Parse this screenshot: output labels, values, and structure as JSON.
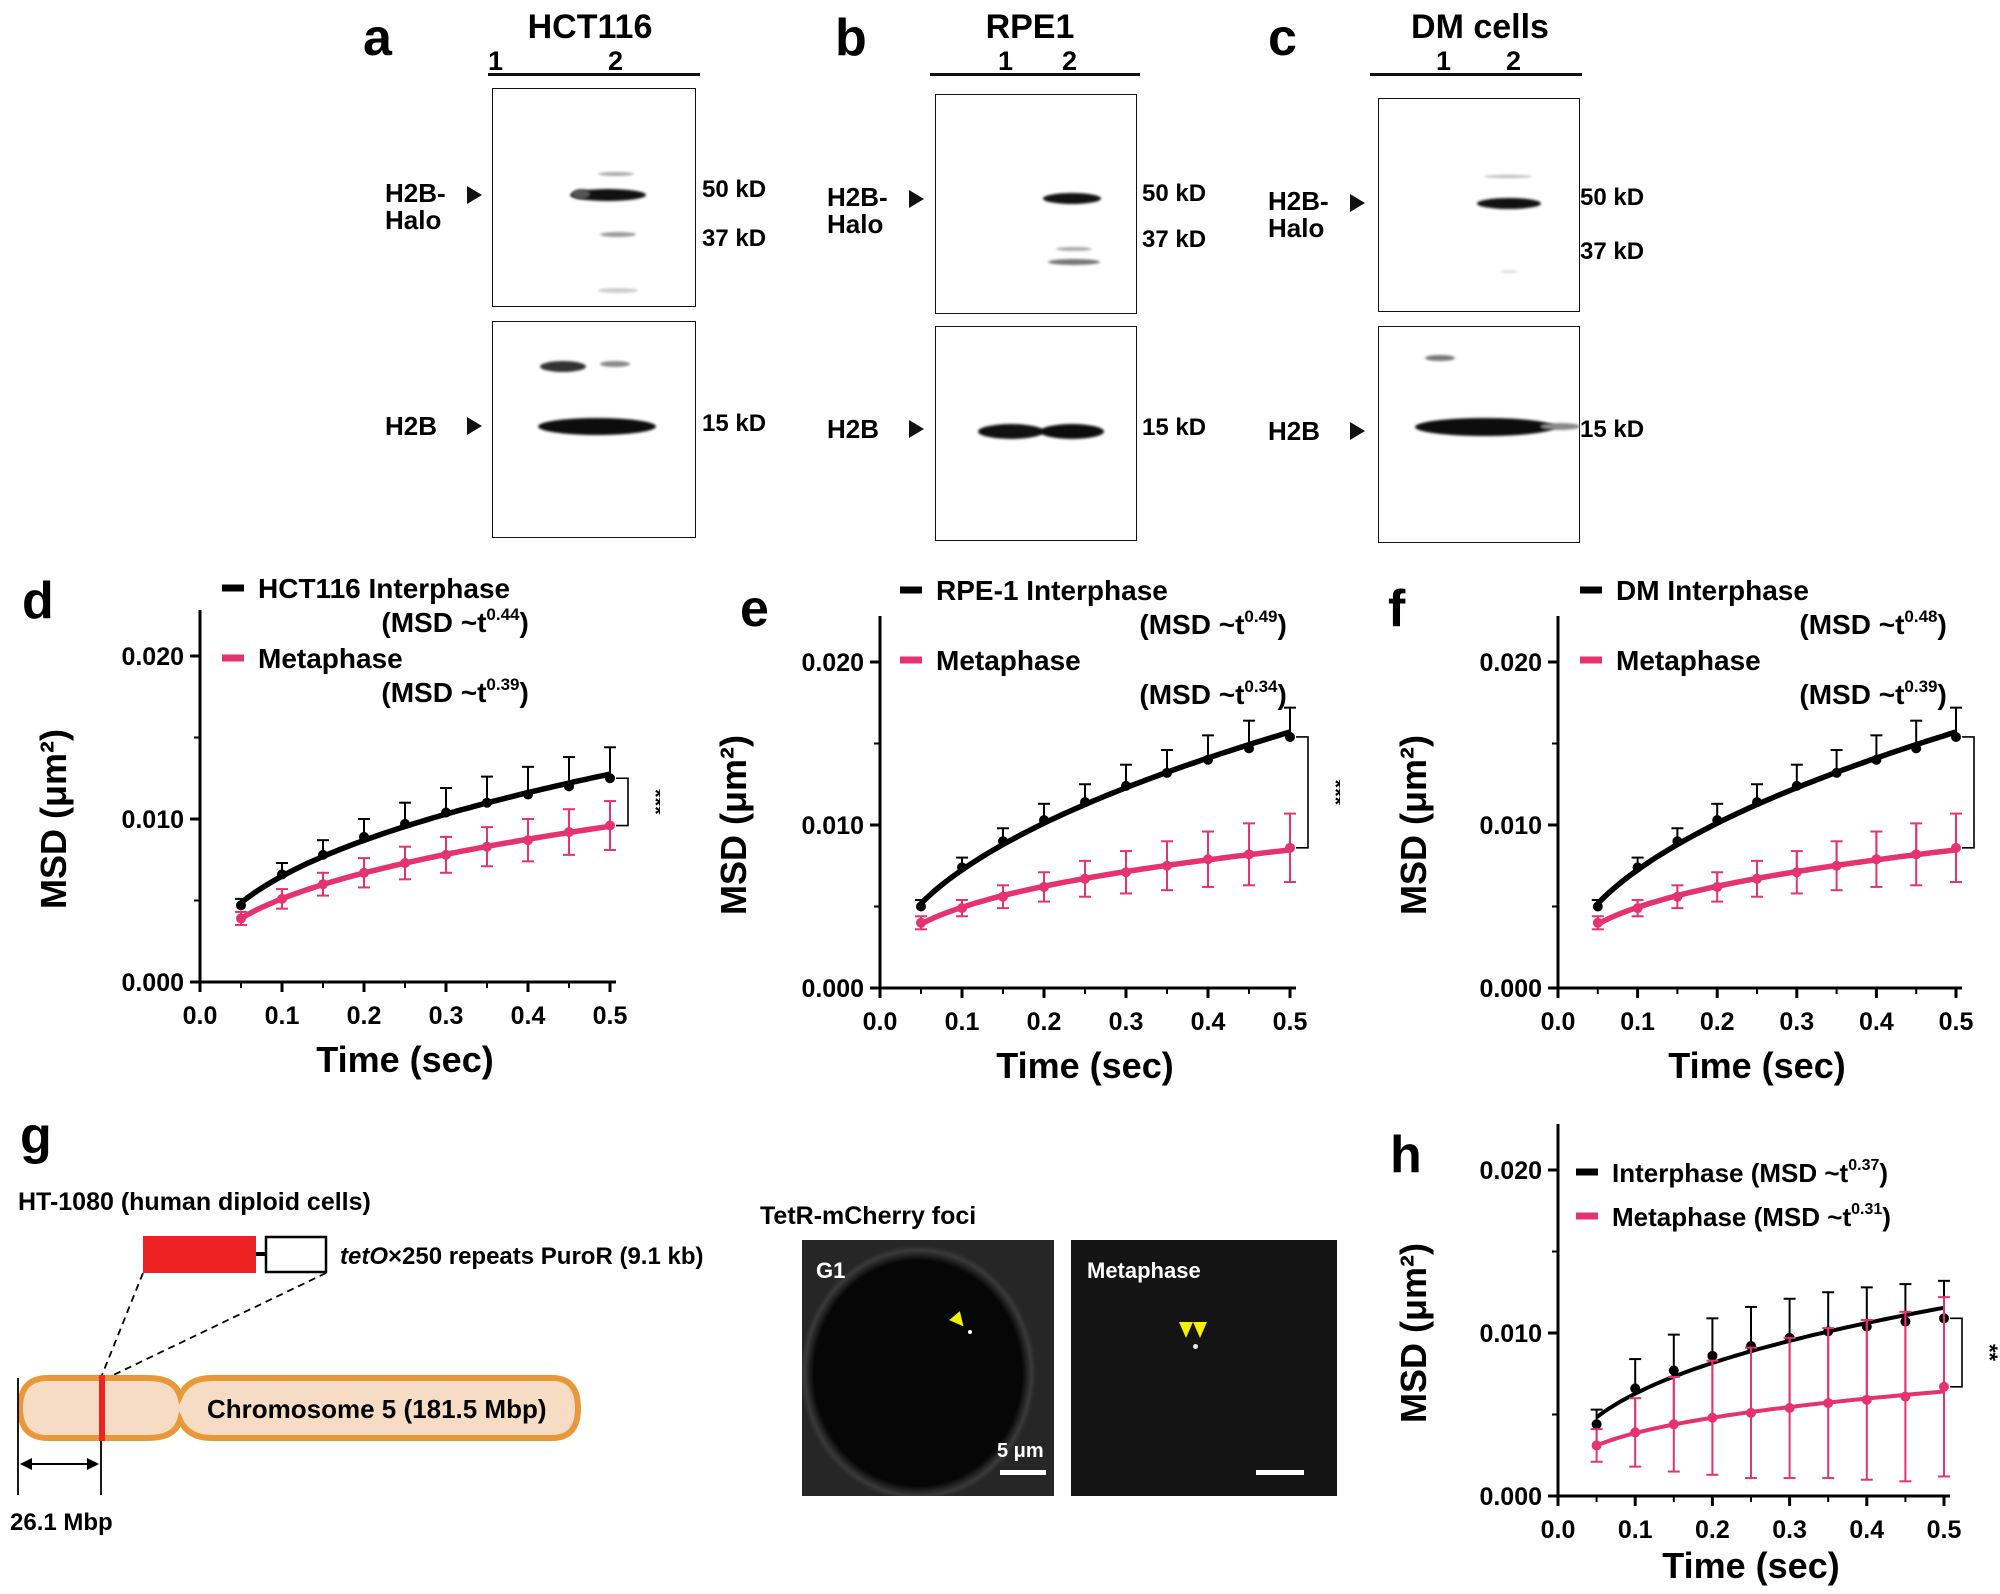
{
  "panels": {
    "a": {
      "label": "a",
      "cell": "HCT116",
      "lanes": [
        "1",
        "2"
      ],
      "upper_band": "H2B-\nHalo",
      "lower_band": "H2B",
      "kd": [
        "50 kD",
        "37 kD",
        "15 kD"
      ]
    },
    "b": {
      "label": "b",
      "cell": "RPE1",
      "lanes": [
        "1",
        "2"
      ],
      "upper_band": "H2B-\nHalo",
      "lower_band": "H2B",
      "kd": [
        "50 kD",
        "37 kD",
        "15 kD"
      ]
    },
    "c": {
      "label": "c",
      "cell": "DM cells",
      "lanes": [
        "1",
        "2"
      ],
      "upper_band": "H2B-\nHalo",
      "lower_band": "H2B",
      "kd": [
        "50 kD",
        "37 kD",
        "15 kD"
      ]
    },
    "g": {
      "label": "g",
      "cell_line": "HT-1080 (human diploid cells)",
      "insert_italic": "tetO",
      "insert_rest": "×250 repeats PuroR (9.1 kb)",
      "chromosome": "Chromosome 5 (181.5 Mbp)",
      "distance": "26.1 Mbp",
      "micrograph_title": "TetR-mCherry foci",
      "img_left_label": "G1",
      "img_right_label": "Metaphase",
      "scale_bar": "5 μm"
    }
  },
  "colors": {
    "interphase": "#000000",
    "metaphase": "#e5336f"
  },
  "chart_data": [
    {
      "id": "d",
      "label": "d",
      "type": "line",
      "xlabel": "Time (sec)",
      "ylabel": "MSD (μm²)",
      "xlim": [
        0,
        0.5
      ],
      "ylim": [
        0,
        0.02
      ],
      "xticks": [
        "0.0",
        "0.1",
        "0.2",
        "0.3",
        "0.4",
        "0.5"
      ],
      "yticks": [
        "0.000",
        "0.010",
        "0.020"
      ],
      "significance": "***",
      "legend": [
        {
          "name": "HCT116 Interphase",
          "exp_prefix": "(MSD ~t",
          "exp": "0.44",
          "exp_suffix": ")"
        },
        {
          "name": "Metaphase",
          "exp_prefix": "(MSD ~t",
          "exp": "0.39",
          "exp_suffix": ")"
        }
      ],
      "x": [
        0.05,
        0.1,
        0.15,
        0.2,
        0.25,
        0.3,
        0.35,
        0.4,
        0.45,
        0.5
      ],
      "series": [
        {
          "name": "HCT116 Interphase",
          "values": [
            0.0047,
            0.0066,
            0.0078,
            0.0089,
            0.0097,
            0.0104,
            0.011,
            0.0115,
            0.012,
            0.0125
          ],
          "err": [
            0.0004,
            0.0007,
            0.0009,
            0.0011,
            0.0013,
            0.0015,
            0.0016,
            0.0017,
            0.0018,
            0.0019
          ]
        },
        {
          "name": "Metaphase",
          "values": [
            0.0039,
            0.0051,
            0.006,
            0.0067,
            0.0073,
            0.0078,
            0.0083,
            0.0087,
            0.0092,
            0.0096
          ],
          "err": [
            0.0004,
            0.0006,
            0.0007,
            0.0009,
            0.001,
            0.0011,
            0.0012,
            0.0013,
            0.0014,
            0.0015
          ]
        }
      ]
    },
    {
      "id": "e",
      "label": "e",
      "type": "line",
      "xlabel": "Time (sec)",
      "ylabel": "MSD (μm²)",
      "xlim": [
        0,
        0.5
      ],
      "ylim": [
        0,
        0.02
      ],
      "xticks": [
        "0.0",
        "0.1",
        "0.2",
        "0.3",
        "0.4",
        "0.5"
      ],
      "yticks": [
        "0.000",
        "0.010",
        "0.020"
      ],
      "significance": "***",
      "legend": [
        {
          "name": "RPE-1 Interphase",
          "exp_prefix": "(MSD ~t",
          "exp": "0.49",
          "exp_suffix": ")"
        },
        {
          "name": "Metaphase",
          "exp_prefix": "(MSD ~t",
          "exp": "0.34",
          "exp_suffix": ")"
        }
      ],
      "x": [
        0.05,
        0.1,
        0.15,
        0.2,
        0.25,
        0.3,
        0.35,
        0.4,
        0.45,
        0.5
      ],
      "series": [
        {
          "name": "RPE-1 Interphase",
          "values": [
            0.005,
            0.0074,
            0.009,
            0.0103,
            0.0114,
            0.0124,
            0.0132,
            0.014,
            0.0147,
            0.0154
          ],
          "err": [
            0.0004,
            0.0006,
            0.0008,
            0.001,
            0.0011,
            0.0013,
            0.0014,
            0.0015,
            0.0017,
            0.0018
          ]
        },
        {
          "name": "Metaphase",
          "values": [
            0.004,
            0.0049,
            0.0056,
            0.0062,
            0.0067,
            0.0071,
            0.0075,
            0.0079,
            0.0082,
            0.0086
          ],
          "err": [
            0.0004,
            0.0005,
            0.0007,
            0.0009,
            0.0011,
            0.0013,
            0.0015,
            0.0017,
            0.0019,
            0.0021
          ]
        }
      ]
    },
    {
      "id": "f",
      "label": "f",
      "type": "line",
      "xlabel": "Time (sec)",
      "ylabel": "MSD (μm²)",
      "xlim": [
        0,
        0.5
      ],
      "ylim": [
        0,
        0.02
      ],
      "xticks": [
        "0.0",
        "0.1",
        "0.2",
        "0.3",
        "0.4",
        "0.5"
      ],
      "yticks": [
        "0.000",
        "0.010",
        "0.020"
      ],
      "significance": "***",
      "legend": [
        {
          "name": "DM Interphase",
          "exp_prefix": "(MSD ~t",
          "exp": "0.48",
          "exp_suffix": ")"
        },
        {
          "name": "Metaphase",
          "exp_prefix": "(MSD ~t",
          "exp": "0.39",
          "exp_suffix": ")"
        }
      ],
      "x": [
        0.05,
        0.1,
        0.15,
        0.2,
        0.25,
        0.3,
        0.35,
        0.4,
        0.45,
        0.5
      ],
      "series": [
        {
          "name": "DM Interphase",
          "values": [
            0.005,
            0.0074,
            0.009,
            0.0103,
            0.0114,
            0.0124,
            0.0132,
            0.014,
            0.0147,
            0.0154
          ],
          "err": [
            0.0004,
            0.0006,
            0.0008,
            0.001,
            0.0011,
            0.0013,
            0.0014,
            0.0015,
            0.0017,
            0.0018
          ]
        },
        {
          "name": "Metaphase",
          "values": [
            0.004,
            0.0049,
            0.0056,
            0.0062,
            0.0067,
            0.0071,
            0.0075,
            0.0079,
            0.0082,
            0.0086
          ],
          "err": [
            0.0004,
            0.0005,
            0.0007,
            0.0009,
            0.0011,
            0.0013,
            0.0015,
            0.0017,
            0.0019,
            0.0021
          ]
        }
      ]
    },
    {
      "id": "h",
      "label": "h",
      "type": "line",
      "xlabel": "Time (sec)",
      "ylabel": "MSD (μm²)",
      "xlim": [
        0,
        0.5
      ],
      "ylim": [
        0,
        0.02
      ],
      "xticks": [
        "0.0",
        "0.1",
        "0.2",
        "0.3",
        "0.4",
        "0.5"
      ],
      "yticks": [
        "0.000",
        "0.010",
        "0.020"
      ],
      "significance": "**",
      "legend": [
        {
          "name": "Interphase",
          "exp_prefix": "(MSD ~t",
          "exp": "0.37",
          "exp_suffix": ")"
        },
        {
          "name": "Metaphase",
          "exp_prefix": "(MSD ~t",
          "exp": "0.31",
          "exp_suffix": ")"
        }
      ],
      "x": [
        0.05,
        0.1,
        0.15,
        0.2,
        0.25,
        0.3,
        0.35,
        0.4,
        0.45,
        0.5
      ],
      "series": [
        {
          "name": "Interphase",
          "values": [
            0.0044,
            0.0066,
            0.0077,
            0.0086,
            0.0092,
            0.0097,
            0.0101,
            0.0104,
            0.0107,
            0.0109
          ],
          "err": [
            0.0009,
            0.0018,
            0.0022,
            0.0023,
            0.0024,
            0.0024,
            0.0024,
            0.0024,
            0.0023,
            0.0023
          ]
        },
        {
          "name": "Metaphase",
          "values": [
            0.0031,
            0.0039,
            0.0044,
            0.0048,
            0.0051,
            0.0054,
            0.0057,
            0.0059,
            0.0061,
            0.0067
          ],
          "err": [
            0.001,
            0.0021,
            0.0029,
            0.0035,
            0.004,
            0.0043,
            0.0046,
            0.0049,
            0.0052,
            0.0055
          ]
        }
      ]
    }
  ]
}
